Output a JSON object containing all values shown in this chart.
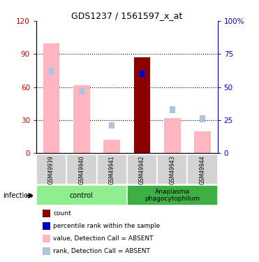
{
  "title": "GDS1237 / 1561597_x_at",
  "samples": [
    "GSM49939",
    "GSM49940",
    "GSM49941",
    "GSM49942",
    "GSM49943",
    "GSM49944"
  ],
  "value_bars": [
    100,
    62,
    12,
    87,
    32,
    20
  ],
  "rank_bars": [
    62,
    47,
    21,
    60,
    33,
    26
  ],
  "is_dark": [
    false,
    false,
    false,
    true,
    false,
    false
  ],
  "left_ylim": [
    0,
    120
  ],
  "right_ylim": [
    0,
    100
  ],
  "left_yticks": [
    0,
    30,
    60,
    90,
    120
  ],
  "right_yticks": [
    0,
    25,
    50,
    75,
    100
  ],
  "right_yticklabels": [
    "0",
    "25",
    "50",
    "75",
    "100%"
  ],
  "dotted_lines": [
    30,
    60,
    90
  ],
  "value_color_absent": "#ffb6c1",
  "value_color_dark": "#8b0000",
  "rank_color_absent": "#b0c4de",
  "rank_color_dark": "#0000cd",
  "left_tick_color": "#cc0000",
  "right_tick_color": "#0000cc",
  "group_control_color": "#90ee90",
  "group_anaplasma_color": "#3cb043",
  "sample_box_color": "#d3d3d3",
  "legend_items": [
    {
      "color": "#8b0000",
      "label": "count"
    },
    {
      "color": "#0000cd",
      "label": "percentile rank within the sample"
    },
    {
      "color": "#ffb6c1",
      "label": "value, Detection Call = ABSENT"
    },
    {
      "color": "#b0c4de",
      "label": "rank, Detection Call = ABSENT"
    }
  ],
  "bar_width": 0.25
}
